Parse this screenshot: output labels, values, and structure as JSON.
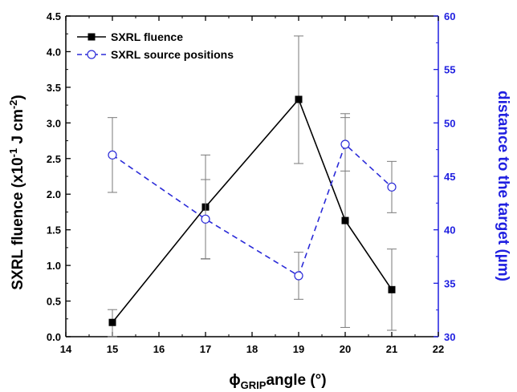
{
  "chart_data": {
    "type": "line",
    "xlabel_main": "ϕ",
    "xlabel_sub": "GRIP",
    "xlabel_rest": "angle (°)",
    "ylabel_left": "SXRL fluence (x10",
    "ylabel_left_sup1": "-1",
    "ylabel_left_mid": " J cm",
    "ylabel_left_sup2": "-2",
    "ylabel_left_end": ")",
    "ylabel_right": "distance to the target (µm)",
    "xlim": [
      14,
      22
    ],
    "ylim_left": [
      0,
      4.5
    ],
    "ylim_right": [
      30,
      60
    ],
    "xticks": [
      "14",
      "15",
      "16",
      "17",
      "18",
      "19",
      "20",
      "21",
      "22"
    ],
    "yticks_left": [
      "0.0",
      "0.5",
      "1.0",
      "1.5",
      "2.0",
      "2.5",
      "3.0",
      "3.5",
      "4.0",
      "4.5"
    ],
    "yticks_right": [
      "30",
      "35",
      "40",
      "45",
      "50",
      "55",
      "60"
    ],
    "legend_position": "top-left",
    "series": [
      {
        "name": "SXRL fluence",
        "axis": "left",
        "color": "#000000",
        "marker": "filled-square",
        "line": "solid",
        "x": [
          15,
          17,
          19,
          20,
          21
        ],
        "y": [
          0.2,
          1.82,
          3.33,
          1.63,
          0.66
        ],
        "err_low": [
          0.0,
          1.09,
          2.43,
          0.13,
          0.09
        ],
        "err_high": [
          0.38,
          2.55,
          4.22,
          3.13,
          1.23
        ]
      },
      {
        "name": "SXRL source positions",
        "axis": "right",
        "color": "#2a2ad8",
        "marker": "open-circle",
        "line": "dashed",
        "x": [
          15,
          17,
          19,
          20,
          21
        ],
        "y": [
          47,
          41,
          35.7,
          48,
          44
        ],
        "err_low": [
          43.5,
          37.3,
          33.5,
          45.5,
          41.6
        ],
        "err_high": [
          50.5,
          44.7,
          37.9,
          50.5,
          46.4
        ]
      }
    ]
  },
  "colors": {
    "right_axis": "#1f1fe0",
    "left_axis": "#000000",
    "errorbar": "#7a7a7a"
  }
}
